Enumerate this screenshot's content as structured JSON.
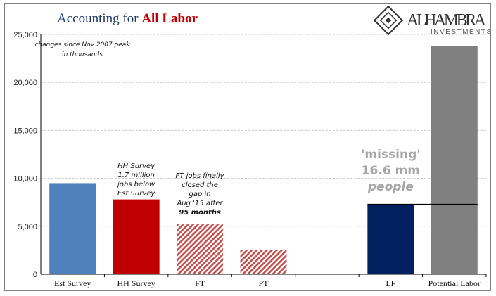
{
  "chart_data": {
    "type": "bar",
    "title": {
      "prefix": "Accounting for ",
      "highlight": "All Labor"
    },
    "subtitle_lines": [
      "changes since Nov 2007 peak",
      "in thousands"
    ],
    "categories": [
      "Est Survey",
      "HH Survey",
      "FT",
      "PT",
      "",
      "LF",
      "Potential Labor"
    ],
    "values": [
      9500,
      7800,
      5200,
      2500,
      null,
      7300,
      23800
    ],
    "bar_colors": [
      "#4f81bd",
      "#c00000",
      "#c0504d",
      "#c0504d",
      null,
      "#002060",
      "#808080"
    ],
    "bar_styles": [
      "solid",
      "solid",
      "hatched",
      "hatched",
      "none",
      "solid",
      "solid"
    ],
    "ylim": [
      0,
      25000
    ],
    "yticks": [
      "0",
      "5,000",
      "10,000",
      "15,000",
      "20,000",
      "25,000"
    ],
    "ytick_values": [
      0,
      5000,
      10000,
      15000,
      20000,
      25000
    ],
    "grid": true,
    "reference_line_value": 7300,
    "annotations": {
      "hh": [
        "HH Survey",
        "1.7 million",
        "jobs below",
        "Est Survey"
      ],
      "ft": [
        "FT jobs finally",
        "closed the",
        "gap in",
        "Aug '15 after"
      ],
      "ft_bold": "95 months",
      "missing": [
        "'missing'",
        "16.6 mm",
        "people"
      ]
    },
    "colors": {
      "title_main": "#1f3864",
      "title_highlight": "#c00000",
      "grid": "#c8c8c8",
      "missing_text": "#a6a6a6"
    }
  },
  "logo": {
    "name": "ALHAMBRA",
    "sub": "INVESTMENTS"
  }
}
